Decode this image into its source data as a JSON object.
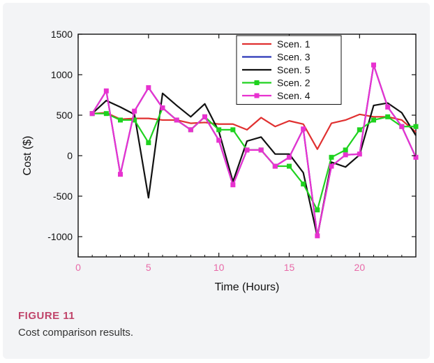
{
  "chart_data": {
    "type": "line",
    "title": "",
    "xlabel": "Time (Hours)",
    "ylabel": "Cost ($)",
    "xlim": [
      0,
      24
    ],
    "ylim": [
      -1250,
      1500
    ],
    "xticks": [
      0,
      5,
      10,
      15,
      20
    ],
    "yticks": [
      -1000,
      -500,
      0,
      500,
      1000,
      1500
    ],
    "legend_position": "top-center",
    "grid": false,
    "colors": {
      "xtick_labels": "#e86aa8",
      "ytick_labels": "#111111",
      "ylabel": "#3cc23c"
    },
    "series": [
      {
        "name": "Scen. 1",
        "color": "#e03030",
        "marker": "none",
        "x": [
          1,
          2,
          3,
          4,
          5,
          6,
          7,
          8,
          9,
          10,
          11,
          12,
          13,
          14,
          15,
          16,
          17,
          18,
          19,
          20,
          21,
          22,
          23,
          24
        ],
        "y": [
          520,
          530,
          450,
          460,
          460,
          440,
          440,
          400,
          410,
          390,
          390,
          320,
          470,
          360,
          430,
          390,
          80,
          400,
          440,
          510,
          480,
          480,
          440,
          290
        ]
      },
      {
        "name": "Scen. 3",
        "color": "#2a36b8",
        "marker": "none",
        "x": [
          1,
          2,
          3,
          4,
          5,
          6,
          7,
          8,
          9,
          10,
          11,
          12,
          13,
          14,
          15,
          16,
          17,
          18,
          19,
          20,
          21,
          22,
          23,
          24
        ],
        "y": [
          520,
          800,
          -230,
          550,
          840,
          590,
          440,
          320,
          480,
          190,
          -360,
          70,
          70,
          -130,
          -20,
          330,
          -990,
          -130,
          10,
          20,
          1120,
          600,
          360,
          -20
        ]
      },
      {
        "name": "Scen. 5",
        "color": "#111111",
        "marker": "none",
        "x": [
          1,
          2,
          3,
          4,
          5,
          6,
          7,
          8,
          9,
          10,
          11,
          12,
          13,
          14,
          15,
          16,
          17,
          18,
          19,
          20,
          21,
          22,
          23,
          24
        ],
        "y": [
          520,
          680,
          600,
          510,
          -520,
          770,
          620,
          480,
          640,
          300,
          -320,
          180,
          230,
          20,
          20,
          -210,
          -1000,
          -80,
          -140,
          10,
          620,
          650,
          530,
          250
        ]
      },
      {
        "name": "Scen. 2",
        "color": "#1fd21f",
        "marker": "square",
        "x": [
          1,
          2,
          3,
          4,
          5,
          6,
          7,
          8,
          9,
          10,
          11,
          12,
          13,
          14,
          15,
          16,
          17,
          18,
          19,
          20,
          21,
          22,
          23,
          24
        ],
        "y": [
          520,
          520,
          440,
          440,
          160,
          590,
          440,
          320,
          480,
          320,
          320,
          70,
          70,
          -130,
          -130,
          -350,
          -670,
          -20,
          70,
          320,
          440,
          480,
          360,
          360
        ]
      },
      {
        "name": "Scen. 4",
        "color": "#e832d0",
        "marker": "square",
        "x": [
          1,
          2,
          3,
          4,
          5,
          6,
          7,
          8,
          9,
          10,
          11,
          12,
          13,
          14,
          15,
          16,
          17,
          18,
          19,
          20,
          21,
          22,
          23,
          24
        ],
        "y": [
          520,
          800,
          -230,
          550,
          840,
          590,
          440,
          320,
          480,
          190,
          -360,
          70,
          70,
          -130,
          -20,
          330,
          -990,
          -130,
          10,
          20,
          1120,
          600,
          360,
          -20
        ]
      }
    ]
  },
  "caption": {
    "label": "FIGURE 11",
    "text": "Cost comparison results."
  }
}
